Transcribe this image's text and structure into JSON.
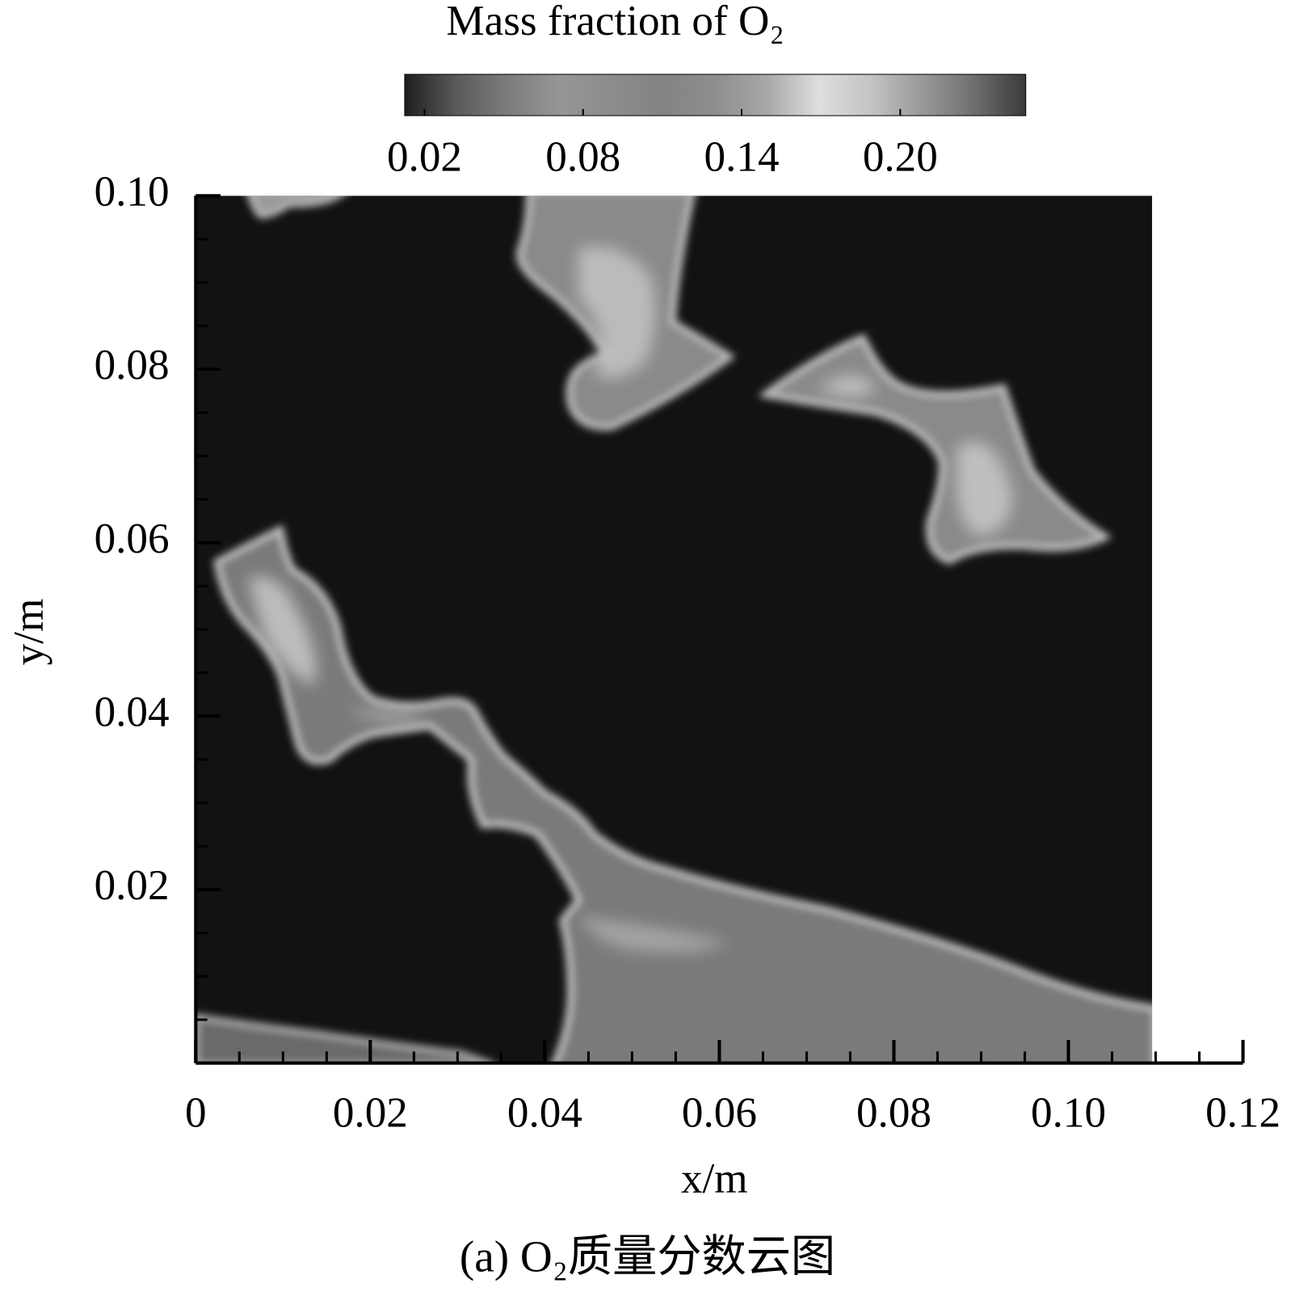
{
  "chart_data": {
    "type": "contour",
    "title": "Mass fraction of O₂",
    "colorbar": {
      "clim": [
        0.0125,
        0.2475
      ],
      "ticks": [
        0.02,
        0.08,
        0.14,
        {
          "value": 0.2,
          "label": "0.20"
        }
      ],
      "colormap": [
        "#1e1e1e",
        "#5a5a5a",
        "#7c7c7c",
        "#969696",
        "#8c8c8c",
        "#838383",
        "#8e8e8e",
        "#a8a8a8",
        "#dedede",
        "#c4c4c4",
        "#999999",
        "#6e6e6e",
        "#3a3a3a"
      ]
    },
    "xlabel": "x/m",
    "ylabel": "y/m",
    "xlim": [
      0,
      0.12
    ],
    "ylim": [
      0,
      0.1
    ],
    "xticks": [
      0,
      0.02,
      0.04,
      0.06,
      0.08,
      {
        "value": 0.1,
        "label": "0.10"
      },
      0.12
    ],
    "yticks": [
      0.02,
      0.04,
      0.06,
      0.08,
      {
        "value": 0.1,
        "label": "0.10"
      }
    ],
    "minor_tick_step": 0.005,
    "caption": "(a) O₂质量分数云图"
  }
}
